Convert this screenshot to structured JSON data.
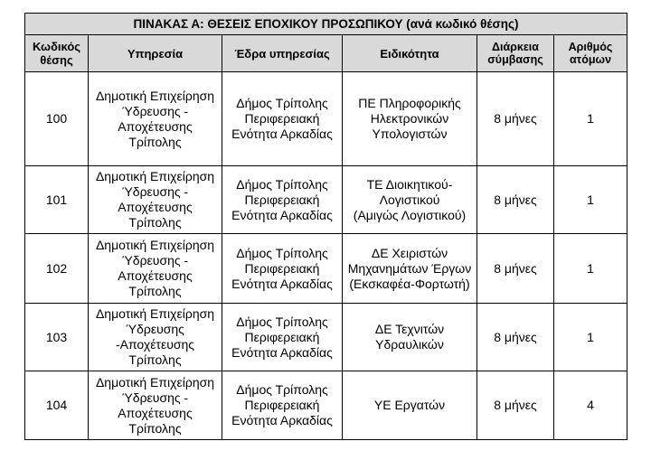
{
  "table": {
    "title": "ΠΙΝΑΚΑΣ Α: ΘΕΣΕΙΣ ΕΠΟΧΙΚΟΥ ΠΡΟΣΩΠΙΚΟΥ (ανά κωδικό θέσης)",
    "headers": {
      "code": [
        "Κωδικός",
        "θέσης"
      ],
      "service": "Υπηρεσία",
      "location": "Έδρα υπηρεσίας",
      "specialty": "Ειδικότητα",
      "duration": [
        "Διάρκεια",
        "σύμβασης"
      ],
      "persons": [
        "Αριθμός",
        "ατόμων"
      ]
    },
    "rows": [
      {
        "code": "100",
        "service": [
          "Δημοτική Επιχείρηση",
          "Ύδρευσης -",
          "Αποχέτευσης",
          "Τρίπολης"
        ],
        "location": [
          "Δήμος Τρίπολης",
          "Περιφερειακή",
          "Ενότητα Αρκαδίας"
        ],
        "specialty": [
          "ΠΕ Πληροφορικής",
          "Ηλεκτρονικών",
          "Υπολογιστών"
        ],
        "duration": "8 μήνες",
        "persons": "1"
      },
      {
        "code": "101",
        "service": [
          "Δημοτική Επιχείρηση",
          "Ύδρευσης -",
          "Αποχέτευσης",
          "Τρίπολης"
        ],
        "location": [
          "Δήμος Τρίπολης",
          "Περιφερειακή",
          "Ενότητα Αρκαδίας"
        ],
        "specialty": [
          "ΤΕ Διοικητικού-",
          "Λογιστικού",
          "(Αμιγώς Λογιστικού)"
        ],
        "duration": "8 μήνες",
        "persons": "1"
      },
      {
        "code": "102",
        "service": [
          "Δημοτική Επιχείρηση",
          "Ύδρευσης -",
          "Αποχέτευσης",
          "Τρίπολης"
        ],
        "location": [
          "Δήμος Τρίπολης",
          "Περιφερειακή",
          "Ενότητα Αρκαδίας"
        ],
        "specialty": [
          "ΔΕ Χειριστών",
          "Μηχανημάτων Έργων",
          "(Εκσκαφέα-Φορτωτή)"
        ],
        "duration": "8 μήνες",
        "persons": "1"
      },
      {
        "code": "103",
        "service": [
          "Δημοτική Επιχείρηση",
          "Ύδρευσης",
          "-Αποχέτευσης",
          "Τρίπολης"
        ],
        "location": [
          "Δήμος Τρίπολης",
          "Περιφερειακή",
          "Ενότητα Αρκαδίας"
        ],
        "specialty": [
          "ΔΕ Τεχνιτών",
          "Υδραυλικών"
        ],
        "duration": "8 μήνες",
        "persons": "1"
      },
      {
        "code": "104",
        "service": [
          "Δημοτική Επιχείρηση",
          "Ύδρευσης -",
          "Αποχέτευσης",
          "Τρίπολης"
        ],
        "location": [
          "Δήμος Τρίπολης",
          "Περιφερειακή",
          "Ενότητα Αρκαδίας"
        ],
        "specialty": [
          "ΥΕ Εργατών"
        ],
        "duration": "8 μήνες",
        "persons": "4"
      }
    ]
  },
  "colors": {
    "header_background": "#d9d9d9",
    "border": "#000000"
  }
}
